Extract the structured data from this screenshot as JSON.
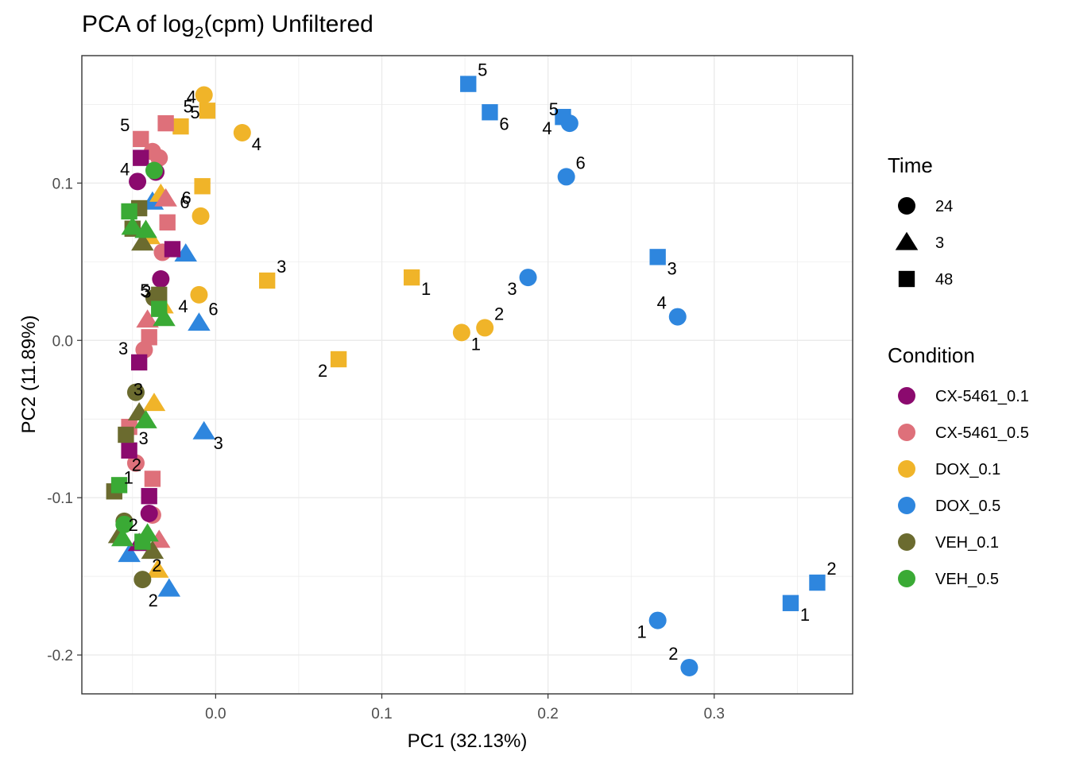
{
  "chart_data": {
    "type": "scatter",
    "title": "PCA of log2(cpm) Unfiltered",
    "title_parts": {
      "before": "PCA of log",
      "subscript": "2",
      "after": "(cpm) Unfiltered"
    },
    "xlabel": "PC1 (32.13%)",
    "ylabel": "PC2 (11.89%)",
    "xlim": [
      -0.0805,
      0.3833
    ],
    "ylim": [
      -0.2247,
      0.181
    ],
    "x_ticks": [
      {
        "value": 0.0,
        "label": "0.0"
      },
      {
        "value": 0.1,
        "label": "0.1"
      },
      {
        "value": 0.2,
        "label": "0.2"
      },
      {
        "value": 0.3,
        "label": "0.3"
      }
    ],
    "y_ticks": [
      {
        "value": -0.2,
        "label": "-0.2"
      },
      {
        "value": -0.1,
        "label": "-0.1"
      },
      {
        "value": 0.0,
        "label": "0.0"
      },
      {
        "value": 0.1,
        "label": "0.1"
      }
    ],
    "grid": true,
    "colors": {
      "CX-5461_0.1": "#8b0a6e",
      "CX-5461_0.5": "#de707a",
      "DOX_0.1": "#f0b429",
      "DOX_0.5": "#2e86de",
      "VEH_0.1": "#6b6b2f",
      "VEH_0.5": "#3aaa35"
    },
    "legend": {
      "placement": "right",
      "shape_title": "Time",
      "shapes": [
        {
          "label": "24",
          "shape": "circle"
        },
        {
          "label": "3",
          "shape": "triangle"
        },
        {
          "label": "48",
          "shape": "square"
        }
      ],
      "color_title": "Condition",
      "conditions": [
        "CX-5461_0.1",
        "CX-5461_0.5",
        "DOX_0.1",
        "DOX_0.5",
        "VEH_0.1",
        "VEH_0.5"
      ]
    },
    "points": [
      {
        "x": 0.152,
        "y": 0.163,
        "cond": "DOX_0.5",
        "shape": "square",
        "label": "5"
      },
      {
        "x": 0.165,
        "y": 0.145,
        "cond": "DOX_0.5",
        "shape": "square",
        "label": "6"
      },
      {
        "x": 0.209,
        "y": 0.142,
        "cond": "DOX_0.5",
        "shape": "square",
        "label": "4"
      },
      {
        "x": 0.213,
        "y": 0.138,
        "cond": "DOX_0.5",
        "shape": "circle",
        "label": "5"
      },
      {
        "x": 0.211,
        "y": 0.104,
        "cond": "DOX_0.5",
        "shape": "circle",
        "label": "6"
      },
      {
        "x": 0.266,
        "y": 0.053,
        "cond": "DOX_0.5",
        "shape": "square",
        "label": "3"
      },
      {
        "x": 0.188,
        "y": 0.04,
        "cond": "DOX_0.5",
        "shape": "circle",
        "label": "3"
      },
      {
        "x": 0.278,
        "y": 0.015,
        "cond": "DOX_0.5",
        "shape": "circle",
        "label": "4"
      },
      {
        "x": 0.362,
        "y": -0.154,
        "cond": "DOX_0.5",
        "shape": "square",
        "label": "2"
      },
      {
        "x": 0.346,
        "y": -0.167,
        "cond": "DOX_0.5",
        "shape": "square",
        "label": "1"
      },
      {
        "x": 0.266,
        "y": -0.178,
        "cond": "DOX_0.5",
        "shape": "circle",
        "label": "1"
      },
      {
        "x": 0.285,
        "y": -0.208,
        "cond": "DOX_0.5",
        "shape": "circle",
        "label": "2"
      },
      {
        "x": -0.01,
        "y": 0.011,
        "cond": "DOX_0.5",
        "shape": "triangle",
        "label": "6"
      },
      {
        "x": -0.007,
        "y": -0.058,
        "cond": "DOX_0.5",
        "shape": "triangle",
        "label": "3"
      },
      {
        "x": -0.028,
        "y": -0.158,
        "cond": "DOX_0.5",
        "shape": "triangle",
        "label": "2"
      },
      {
        "x": -0.052,
        "y": -0.136,
        "cond": "DOX_0.5",
        "shape": "triangle",
        "label": ""
      },
      {
        "x": -0.018,
        "y": 0.055,
        "cond": "DOX_0.5",
        "shape": "triangle",
        "label": ""
      },
      {
        "x": -0.038,
        "y": 0.088,
        "cond": "DOX_0.5",
        "shape": "triangle",
        "label": ""
      },
      {
        "x": -0.007,
        "y": 0.156,
        "cond": "DOX_0.1",
        "shape": "circle",
        "label": "5"
      },
      {
        "x": -0.005,
        "y": 0.146,
        "cond": "DOX_0.1",
        "shape": "square",
        "label": "4"
      },
      {
        "x": -0.021,
        "y": 0.136,
        "cond": "DOX_0.1",
        "shape": "square",
        "label": "5"
      },
      {
        "x": 0.016,
        "y": 0.132,
        "cond": "DOX_0.1",
        "shape": "circle",
        "label": "4"
      },
      {
        "x": -0.008,
        "y": 0.098,
        "cond": "DOX_0.1",
        "shape": "square",
        "label": "6"
      },
      {
        "x": -0.009,
        "y": 0.079,
        "cond": "DOX_0.1",
        "shape": "circle",
        "label": "6"
      },
      {
        "x": 0.031,
        "y": 0.038,
        "cond": "DOX_0.1",
        "shape": "square",
        "label": "3"
      },
      {
        "x": 0.118,
        "y": 0.04,
        "cond": "DOX_0.1",
        "shape": "square",
        "label": "1"
      },
      {
        "x": -0.01,
        "y": 0.029,
        "cond": "DOX_0.1",
        "shape": "circle",
        "label": "4"
      },
      {
        "x": -0.032,
        "y": 0.022,
        "cond": "DOX_0.1",
        "shape": "triangle",
        "label": "3"
      },
      {
        "x": 0.162,
        "y": 0.008,
        "cond": "DOX_0.1",
        "shape": "circle",
        "label": "2"
      },
      {
        "x": 0.148,
        "y": 0.005,
        "cond": "DOX_0.1",
        "shape": "circle",
        "label": "1"
      },
      {
        "x": 0.074,
        "y": -0.012,
        "cond": "DOX_0.1",
        "shape": "square",
        "label": "2"
      },
      {
        "x": -0.037,
        "y": -0.04,
        "cond": "DOX_0.1",
        "shape": "triangle",
        "label": "3"
      },
      {
        "x": -0.035,
        "y": -0.146,
        "cond": "DOX_0.1",
        "shape": "triangle",
        "label": ""
      },
      {
        "x": -0.033,
        "y": 0.093,
        "cond": "DOX_0.1",
        "shape": "triangle",
        "label": ""
      },
      {
        "x": -0.04,
        "y": 0.066,
        "cond": "DOX_0.1",
        "shape": "triangle",
        "label": ""
      },
      {
        "x": -0.045,
        "y": 0.128,
        "cond": "CX-5461_0.5",
        "shape": "square",
        "label": "5"
      },
      {
        "x": -0.03,
        "y": 0.138,
        "cond": "CX-5461_0.5",
        "shape": "square",
        "label": ""
      },
      {
        "x": -0.038,
        "y": 0.12,
        "cond": "CX-5461_0.5",
        "shape": "circle",
        "label": ""
      },
      {
        "x": -0.034,
        "y": 0.116,
        "cond": "CX-5461_0.5",
        "shape": "circle",
        "label": ""
      },
      {
        "x": -0.03,
        "y": 0.09,
        "cond": "CX-5461_0.5",
        "shape": "triangle",
        "label": ""
      },
      {
        "x": -0.029,
        "y": 0.075,
        "cond": "CX-5461_0.5",
        "shape": "square",
        "label": ""
      },
      {
        "x": -0.032,
        "y": 0.056,
        "cond": "CX-5461_0.5",
        "shape": "circle",
        "label": ""
      },
      {
        "x": -0.041,
        "y": 0.013,
        "cond": "CX-5461_0.5",
        "shape": "triangle",
        "label": ""
      },
      {
        "x": -0.04,
        "y": 0.002,
        "cond": "CX-5461_0.5",
        "shape": "square",
        "label": ""
      },
      {
        "x": -0.043,
        "y": -0.006,
        "cond": "CX-5461_0.5",
        "shape": "circle",
        "label": ""
      },
      {
        "x": -0.052,
        "y": -0.055,
        "cond": "CX-5461_0.5",
        "shape": "square",
        "label": "3"
      },
      {
        "x": -0.048,
        "y": -0.078,
        "cond": "CX-5461_0.5",
        "shape": "circle",
        "label": ""
      },
      {
        "x": -0.038,
        "y": -0.088,
        "cond": "CX-5461_0.5",
        "shape": "square",
        "label": "2"
      },
      {
        "x": -0.038,
        "y": -0.111,
        "cond": "CX-5461_0.5",
        "shape": "circle",
        "label": ""
      },
      {
        "x": -0.034,
        "y": -0.127,
        "cond": "CX-5461_0.5",
        "shape": "triangle",
        "label": ""
      },
      {
        "x": -0.045,
        "y": 0.116,
        "cond": "CX-5461_0.1",
        "shape": "square",
        "label": "4"
      },
      {
        "x": -0.047,
        "y": 0.101,
        "cond": "CX-5461_0.1",
        "shape": "circle",
        "label": ""
      },
      {
        "x": -0.036,
        "y": 0.107,
        "cond": "CX-5461_0.1",
        "shape": "circle",
        "label": ""
      },
      {
        "x": -0.026,
        "y": 0.058,
        "cond": "CX-5461_0.1",
        "shape": "square",
        "label": ""
      },
      {
        "x": -0.033,
        "y": 0.039,
        "cond": "CX-5461_0.1",
        "shape": "circle",
        "label": "5"
      },
      {
        "x": -0.046,
        "y": -0.014,
        "cond": "CX-5461_0.1",
        "shape": "square",
        "label": "3"
      },
      {
        "x": -0.052,
        "y": -0.07,
        "cond": "CX-5461_0.1",
        "shape": "square",
        "label": ""
      },
      {
        "x": -0.04,
        "y": -0.099,
        "cond": "CX-5461_0.1",
        "shape": "square",
        "label": ""
      },
      {
        "x": -0.04,
        "y": -0.11,
        "cond": "CX-5461_0.1",
        "shape": "circle",
        "label": "2"
      },
      {
        "x": -0.046,
        "y": -0.129,
        "cond": "CX-5461_0.1",
        "shape": "triangle",
        "label": ""
      },
      {
        "x": -0.05,
        "y": 0.071,
        "cond": "VEH_0.1",
        "shape": "square",
        "label": ""
      },
      {
        "x": -0.046,
        "y": 0.084,
        "cond": "VEH_0.1",
        "shape": "square",
        "label": ""
      },
      {
        "x": -0.044,
        "y": 0.062,
        "cond": "VEH_0.1",
        "shape": "triangle",
        "label": ""
      },
      {
        "x": -0.037,
        "y": 0.027,
        "cond": "VEH_0.1",
        "shape": "circle",
        "label": ""
      },
      {
        "x": -0.034,
        "y": 0.029,
        "cond": "VEH_0.1",
        "shape": "square",
        "label": ""
      },
      {
        "x": -0.048,
        "y": -0.033,
        "cond": "VEH_0.1",
        "shape": "circle",
        "label": ""
      },
      {
        "x": -0.046,
        "y": -0.046,
        "cond": "VEH_0.1",
        "shape": "triangle",
        "label": ""
      },
      {
        "x": -0.054,
        "y": -0.06,
        "cond": "VEH_0.1",
        "shape": "square",
        "label": ""
      },
      {
        "x": -0.061,
        "y": -0.096,
        "cond": "VEH_0.1",
        "shape": "square",
        "label": "1"
      },
      {
        "x": -0.055,
        "y": -0.115,
        "cond": "VEH_0.1",
        "shape": "circle",
        "label": ""
      },
      {
        "x": -0.058,
        "y": -0.124,
        "cond": "VEH_0.1",
        "shape": "triangle",
        "label": ""
      },
      {
        "x": -0.038,
        "y": -0.134,
        "cond": "VEH_0.1",
        "shape": "triangle",
        "label": ""
      },
      {
        "x": -0.044,
        "y": -0.152,
        "cond": "VEH_0.1",
        "shape": "circle",
        "label": "2"
      },
      {
        "x": -0.037,
        "y": 0.108,
        "cond": "VEH_0.5",
        "shape": "circle",
        "label": ""
      },
      {
        "x": -0.052,
        "y": 0.082,
        "cond": "VEH_0.5",
        "shape": "square",
        "label": ""
      },
      {
        "x": -0.05,
        "y": 0.072,
        "cond": "VEH_0.5",
        "shape": "triangle",
        "label": ""
      },
      {
        "x": -0.042,
        "y": 0.07,
        "cond": "VEH_0.5",
        "shape": "triangle",
        "label": ""
      },
      {
        "x": -0.034,
        "y": 0.02,
        "cond": "VEH_0.5",
        "shape": "square",
        "label": ""
      },
      {
        "x": -0.031,
        "y": 0.014,
        "cond": "VEH_0.5",
        "shape": "triangle",
        "label": ""
      },
      {
        "x": -0.042,
        "y": -0.051,
        "cond": "VEH_0.5",
        "shape": "triangle",
        "label": ""
      },
      {
        "x": -0.058,
        "y": -0.092,
        "cond": "VEH_0.5",
        "shape": "square",
        "label": ""
      },
      {
        "x": -0.055,
        "y": -0.117,
        "cond": "VEH_0.5",
        "shape": "circle",
        "label": ""
      },
      {
        "x": -0.056,
        "y": -0.126,
        "cond": "VEH_0.5",
        "shape": "triangle",
        "label": ""
      },
      {
        "x": -0.041,
        "y": -0.123,
        "cond": "VEH_0.5",
        "shape": "triangle",
        "label": ""
      },
      {
        "x": -0.044,
        "y": -0.128,
        "cond": "VEH_0.5",
        "shape": "square",
        "label": ""
      }
    ]
  }
}
